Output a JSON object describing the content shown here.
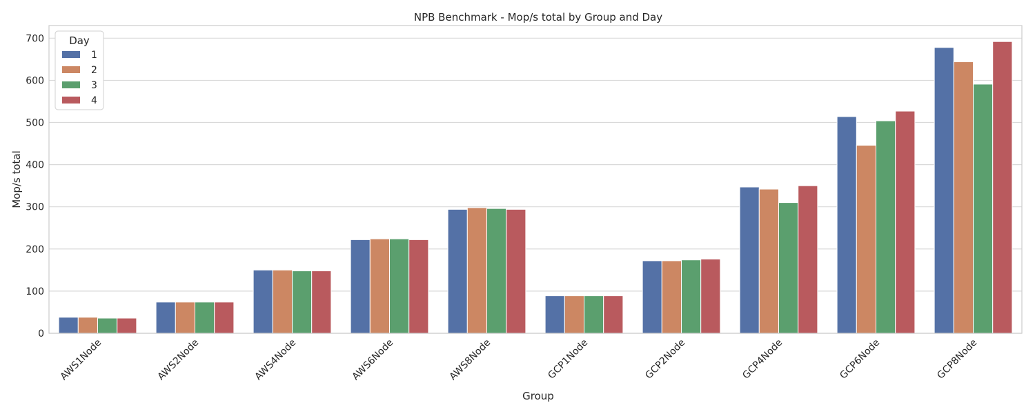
{
  "chart_data": {
    "type": "bar",
    "title": "NPB Benchmark - Mop/s total by Group and Day",
    "xlabel": "Group",
    "ylabel": "Mop/s total",
    "ylim": [
      0,
      730
    ],
    "yticks": [
      "0",
      "100",
      "200",
      "300",
      "400",
      "500",
      "600",
      "700"
    ],
    "ytick_values": [
      0,
      100,
      200,
      300,
      400,
      500,
      600,
      700
    ],
    "grid": true,
    "legend_title": "Day",
    "legend_position": "top-left",
    "categories": [
      "AWS1Node",
      "AWS2Node",
      "AWS4Node",
      "AWS6Node",
      "AWS8Node",
      "GCP1Node",
      "GCP2Node",
      "GCP4Node",
      "GCP6Node",
      "GCP8Node"
    ],
    "series": [
      {
        "name": "1",
        "color": "#5471a6",
        "values": [
          38,
          74,
          150,
          222,
          294,
          89,
          172,
          347,
          514,
          678
        ]
      },
      {
        "name": "2",
        "color": "#cc8763",
        "values": [
          38,
          74,
          150,
          224,
          298,
          89,
          172,
          342,
          446,
          644
        ]
      },
      {
        "name": "3",
        "color": "#5b9f6e",
        "values": [
          36,
          74,
          148,
          224,
          296,
          89,
          174,
          310,
          504,
          591
        ]
      },
      {
        "name": "4",
        "color": "#b95a5e",
        "values": [
          36,
          74,
          148,
          222,
          294,
          89,
          176,
          350,
          527,
          692
        ]
      }
    ]
  }
}
